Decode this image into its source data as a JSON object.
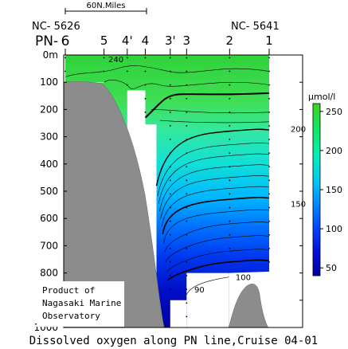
{
  "chart_data": {
    "type": "heatmap",
    "title": "Dissolved oxygen along PN line,Cruise 04-01",
    "unit_label": "μmol/l",
    "scale_label": "60N.Miles",
    "left_station_id": "NC- 5626",
    "right_station_id": "NC- 5641",
    "line_prefix": "PN-",
    "stations": [
      {
        "label": "6",
        "distance": 0
      },
      {
        "label": "5",
        "distance": 45
      },
      {
        "label": "4'",
        "distance": 72
      },
      {
        "label": "4",
        "distance": 93
      },
      {
        "label": "3'",
        "distance": 122
      },
      {
        "label": "3",
        "distance": 141
      },
      {
        "label": "2",
        "distance": 191
      },
      {
        "label": "1",
        "distance": 237
      }
    ],
    "y_axis": {
      "min": 0,
      "max": 1000,
      "reversed": true,
      "ticks": [
        {
          "value": 0,
          "label": "0m"
        },
        {
          "value": 100,
          "label": "100"
        },
        {
          "value": 200,
          "label": "200"
        },
        {
          "value": 300,
          "label": "300"
        },
        {
          "value": 400,
          "label": "400"
        },
        {
          "value": 500,
          "label": "500"
        },
        {
          "value": 600,
          "label": "600"
        },
        {
          "value": 700,
          "label": "700"
        },
        {
          "value": 800,
          "label": "800"
        },
        {
          "value": 900,
          "label": "900"
        },
        {
          "value": 1000,
          "label": "1000"
        }
      ]
    },
    "x_range": [
      0,
      290
    ],
    "colorbar": {
      "min": 40,
      "max": 260,
      "ticks": [
        50,
        100,
        150,
        200,
        250
      ],
      "colors": [
        "#0000a0",
        "#0010e0",
        "#0048ff",
        "#0090ff",
        "#00d0f0",
        "#00f0b0",
        "#10e860",
        "#40d020"
      ]
    },
    "profile": {
      "distance": [
        0,
        45,
        72,
        93,
        122,
        141,
        191,
        237,
        290
      ],
      "bottom_depth": [
        100,
        100,
        130,
        255,
        900,
        1000,
        800,
        795,
        795
      ]
    },
    "contour_labels": [
      {
        "text": "240",
        "distance": 50,
        "depth": 15
      },
      {
        "text": "200",
        "distance": 262,
        "depth": 270
      },
      {
        "text": "150",
        "distance": 262,
        "depth": 545
      },
      {
        "text": "100",
        "distance": 198,
        "depth": 815
      },
      {
        "text": "90",
        "distance": 150,
        "depth": 860
      }
    ],
    "credit": [
      "Product of",
      "Nagasaki Marine",
      "Observatory"
    ],
    "series": [
      {
        "name": "Topography",
        "type": "area"
      }
    ]
  }
}
